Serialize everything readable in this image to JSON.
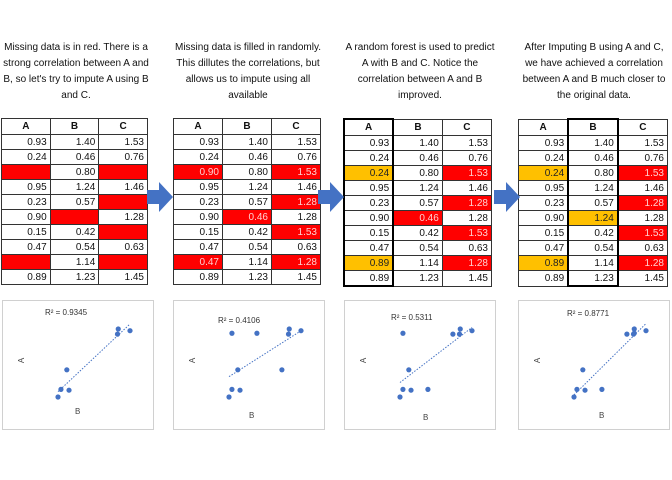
{
  "captions": [
    "Missing data is in red. There is a strong correlation between A and B, so let's try to impute A using B and C.",
    "Missing data is filled in randomly. This dillutes the correlations, but allows us to impute using all available",
    "A random forest is used to predict A with B and C. Notice the correlation between A and B improved.",
    "After Imputing B using A and C, we have achieved a correlation between A and B much closer to the original data."
  ],
  "columns": [
    "A",
    "B",
    "C"
  ],
  "colors": {
    "missing": "#ff0000",
    "imputed": "#ffc000",
    "points": "#4472c4",
    "arrow": "#4472c4"
  },
  "tables": [
    {
      "highlight_col": null,
      "rows": [
        [
          "0.93",
          "1.40",
          "1.53"
        ],
        [
          "0.24",
          "0.46",
          "0.76"
        ],
        [
          "",
          "0.80",
          ""
        ],
        [
          "0.95",
          "1.24",
          "1.46"
        ],
        [
          "0.23",
          "0.57",
          ""
        ],
        [
          "0.90",
          "",
          "1.28"
        ],
        [
          "0.15",
          "0.42",
          ""
        ],
        [
          "0.47",
          "0.54",
          "0.63"
        ],
        [
          "",
          "1.14",
          ""
        ],
        [
          "0.89",
          "1.23",
          "1.45"
        ]
      ],
      "states": [
        [
          "",
          "",
          ""
        ],
        [
          "",
          "",
          ""
        ],
        [
          "red",
          "",
          "red"
        ],
        [
          "",
          "",
          ""
        ],
        [
          "",
          "",
          "red"
        ],
        [
          "",
          "red",
          ""
        ],
        [
          "",
          "",
          "red"
        ],
        [
          "",
          "",
          ""
        ],
        [
          "red",
          "",
          "red"
        ],
        [
          "",
          "",
          ""
        ]
      ]
    },
    {
      "highlight_col": null,
      "rows": [
        [
          "0.93",
          "1.40",
          "1.53"
        ],
        [
          "0.24",
          "0.46",
          "0.76"
        ],
        [
          "0.90",
          "0.80",
          "1.53"
        ],
        [
          "0.95",
          "1.24",
          "1.46"
        ],
        [
          "0.23",
          "0.57",
          "1.28"
        ],
        [
          "0.90",
          "0.46",
          "1.28"
        ],
        [
          "0.15",
          "0.42",
          "1.53"
        ],
        [
          "0.47",
          "0.54",
          "0.63"
        ],
        [
          "0.47",
          "1.14",
          "1.28"
        ],
        [
          "0.89",
          "1.23",
          "1.45"
        ]
      ],
      "states": [
        [
          "",
          "",
          ""
        ],
        [
          "",
          "",
          ""
        ],
        [
          "red",
          "",
          "red"
        ],
        [
          "",
          "",
          ""
        ],
        [
          "",
          "",
          "red"
        ],
        [
          "",
          "red",
          ""
        ],
        [
          "",
          "",
          "red"
        ],
        [
          "",
          "",
          ""
        ],
        [
          "red",
          "",
          "red"
        ],
        [
          "",
          "",
          ""
        ]
      ]
    },
    {
      "highlight_col": 0,
      "rows": [
        [
          "0.93",
          "1.40",
          "1.53"
        ],
        [
          "0.24",
          "0.46",
          "0.76"
        ],
        [
          "0.24",
          "0.80",
          "1.53"
        ],
        [
          "0.95",
          "1.24",
          "1.46"
        ],
        [
          "0.23",
          "0.57",
          "1.28"
        ],
        [
          "0.90",
          "0.46",
          "1.28"
        ],
        [
          "0.15",
          "0.42",
          "1.53"
        ],
        [
          "0.47",
          "0.54",
          "0.63"
        ],
        [
          "0.89",
          "1.14",
          "1.28"
        ],
        [
          "0.89",
          "1.23",
          "1.45"
        ]
      ],
      "states": [
        [
          "",
          "",
          ""
        ],
        [
          "",
          "",
          ""
        ],
        [
          "yel",
          "",
          "red"
        ],
        [
          "",
          "",
          ""
        ],
        [
          "",
          "",
          "red"
        ],
        [
          "",
          "red",
          ""
        ],
        [
          "",
          "",
          "red"
        ],
        [
          "",
          "",
          ""
        ],
        [
          "yel",
          "",
          "red"
        ],
        [
          "",
          "",
          ""
        ]
      ]
    },
    {
      "highlight_col": 1,
      "rows": [
        [
          "0.93",
          "1.40",
          "1.53"
        ],
        [
          "0.24",
          "0.46",
          "0.76"
        ],
        [
          "0.24",
          "0.80",
          "1.53"
        ],
        [
          "0.95",
          "1.24",
          "1.46"
        ],
        [
          "0.23",
          "0.57",
          "1.28"
        ],
        [
          "0.90",
          "1.24",
          "1.28"
        ],
        [
          "0.15",
          "0.42",
          "1.53"
        ],
        [
          "0.47",
          "0.54",
          "0.63"
        ],
        [
          "0.89",
          "1.14",
          "1.28"
        ],
        [
          "0.89",
          "1.23",
          "1.45"
        ]
      ],
      "states": [
        [
          "",
          "",
          ""
        ],
        [
          "",
          "",
          ""
        ],
        [
          "yel",
          "",
          "red"
        ],
        [
          "",
          "",
          ""
        ],
        [
          "",
          "",
          "red"
        ],
        [
          "",
          "yel",
          ""
        ],
        [
          "",
          "",
          "red"
        ],
        [
          "",
          "",
          ""
        ],
        [
          "yel",
          "",
          "red"
        ],
        [
          "",
          "",
          ""
        ]
      ]
    }
  ],
  "chart_data": [
    {
      "type": "scatter",
      "r2": "R² = 0.9345",
      "xlabel": "B",
      "ylabel": "A",
      "trendline": true,
      "x": [
        1.4,
        0.46,
        1.24,
        0.57,
        0.42,
        0.54,
        1.23
      ],
      "y": [
        0.93,
        0.24,
        0.95,
        0.23,
        0.15,
        0.47,
        0.89
      ]
    },
    {
      "type": "scatter",
      "r2": "R² = 0.4106",
      "xlabel": "B",
      "ylabel": "A",
      "trendline": true,
      "x": [
        1.4,
        0.46,
        0.8,
        1.24,
        0.57,
        0.46,
        0.42,
        0.54,
        1.14,
        1.23
      ],
      "y": [
        0.93,
        0.24,
        0.9,
        0.95,
        0.23,
        0.9,
        0.15,
        0.47,
        0.47,
        0.89
      ]
    },
    {
      "type": "scatter",
      "r2": "R² = 0.5311",
      "xlabel": "B",
      "ylabel": "A",
      "trendline": true,
      "x": [
        1.4,
        0.46,
        0.8,
        1.24,
        0.57,
        0.46,
        0.42,
        0.54,
        1.14,
        1.23
      ],
      "y": [
        0.93,
        0.24,
        0.24,
        0.95,
        0.23,
        0.9,
        0.15,
        0.47,
        0.89,
        0.89
      ]
    },
    {
      "type": "scatter",
      "r2": "R² = 0.8771",
      "xlabel": "B",
      "ylabel": "A",
      "trendline": true,
      "x": [
        1.4,
        0.46,
        0.8,
        1.24,
        0.57,
        1.24,
        0.42,
        0.54,
        1.14,
        1.23
      ],
      "y": [
        0.93,
        0.24,
        0.24,
        0.95,
        0.23,
        0.9,
        0.15,
        0.47,
        0.89,
        0.89
      ]
    }
  ]
}
